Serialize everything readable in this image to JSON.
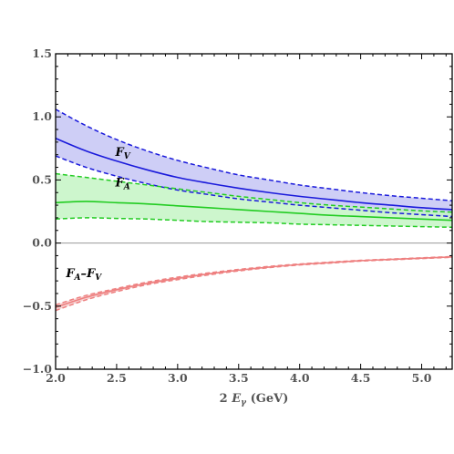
{
  "chart_data": {
    "type": "line",
    "xlabel": "2 Eγ (GeV)",
    "xlabel_parts": {
      "prefix": "2 ",
      "main": "E",
      "sub": "γ",
      "suffix": " (GeV)"
    },
    "xlim": [
      2.0,
      5.25
    ],
    "ylim": [
      -1.0,
      1.5
    ],
    "x_ticks": [
      "2.0",
      "2.5",
      "3.0",
      "3.5",
      "4.0",
      "4.5",
      "5.0"
    ],
    "y_ticks": [
      "1.5",
      "1.0",
      "0.5",
      "0.0",
      "-0.5",
      "-1.0"
    ],
    "zero_line": true,
    "grid": false,
    "series": [
      {
        "name": "FV",
        "label_main": "F",
        "label_sub": "V",
        "label_at": [
          2.55,
          0.69
        ],
        "color": "#1a1adb",
        "band_fill": "#c6c6f5",
        "x": [
          2.0,
          2.25,
          2.5,
          2.75,
          3.0,
          3.25,
          3.5,
          3.75,
          4.0,
          4.25,
          4.5,
          4.75,
          5.0,
          5.25
        ],
        "central": [
          0.83,
          0.73,
          0.65,
          0.58,
          0.52,
          0.475,
          0.435,
          0.4,
          0.37,
          0.345,
          0.32,
          0.3,
          0.28,
          0.265
        ],
        "upper": [
          1.06,
          0.93,
          0.82,
          0.73,
          0.655,
          0.595,
          0.54,
          0.5,
          0.46,
          0.43,
          0.4,
          0.375,
          0.355,
          0.335
        ],
        "lower": [
          0.69,
          0.6,
          0.53,
          0.47,
          0.42,
          0.385,
          0.35,
          0.325,
          0.3,
          0.28,
          0.26,
          0.24,
          0.225,
          0.21
        ]
      },
      {
        "name": "FA",
        "label_main": "F",
        "label_sub": "A",
        "label_at": [
          2.55,
          0.45
        ],
        "color": "#22cc22",
        "band_fill": "#c4f5c4",
        "x": [
          2.0,
          2.25,
          2.5,
          2.75,
          3.0,
          3.25,
          3.5,
          3.75,
          4.0,
          4.25,
          4.5,
          4.75,
          5.0,
          5.25
        ],
        "central": [
          0.32,
          0.33,
          0.32,
          0.31,
          0.295,
          0.28,
          0.265,
          0.25,
          0.235,
          0.22,
          0.21,
          0.2,
          0.19,
          0.18
        ],
        "upper": [
          0.55,
          0.52,
          0.49,
          0.46,
          0.43,
          0.4,
          0.37,
          0.345,
          0.32,
          0.3,
          0.285,
          0.27,
          0.255,
          0.245
        ],
        "lower": [
          0.19,
          0.2,
          0.195,
          0.19,
          0.18,
          0.17,
          0.165,
          0.16,
          0.15,
          0.145,
          0.14,
          0.135,
          0.13,
          0.125
        ]
      },
      {
        "name": "FA-FV",
        "label_main": "F",
        "label_sub": "A",
        "label_dash": "–",
        "label_main2": "F",
        "label_sub2": "V",
        "label_at": [
          2.23,
          -0.27
        ],
        "color": "#ee8080",
        "band_fill": "#f5caca",
        "x": [
          2.0,
          2.25,
          2.5,
          2.75,
          3.0,
          3.25,
          3.5,
          3.75,
          4.0,
          4.25,
          4.5,
          4.75,
          5.0,
          5.25
        ],
        "central": [
          -0.51,
          -0.43,
          -0.37,
          -0.32,
          -0.28,
          -0.245,
          -0.215,
          -0.19,
          -0.17,
          -0.155,
          -0.14,
          -0.13,
          -0.12,
          -0.11
        ],
        "upper": [
          -0.49,
          -0.415,
          -0.36,
          -0.31,
          -0.27,
          -0.237,
          -0.209,
          -0.185,
          -0.166,
          -0.151,
          -0.137,
          -0.127,
          -0.117,
          -0.107
        ],
        "lower": [
          -0.535,
          -0.45,
          -0.385,
          -0.33,
          -0.29,
          -0.253,
          -0.221,
          -0.195,
          -0.174,
          -0.159,
          -0.143,
          -0.133,
          -0.123,
          -0.113
        ]
      }
    ]
  }
}
